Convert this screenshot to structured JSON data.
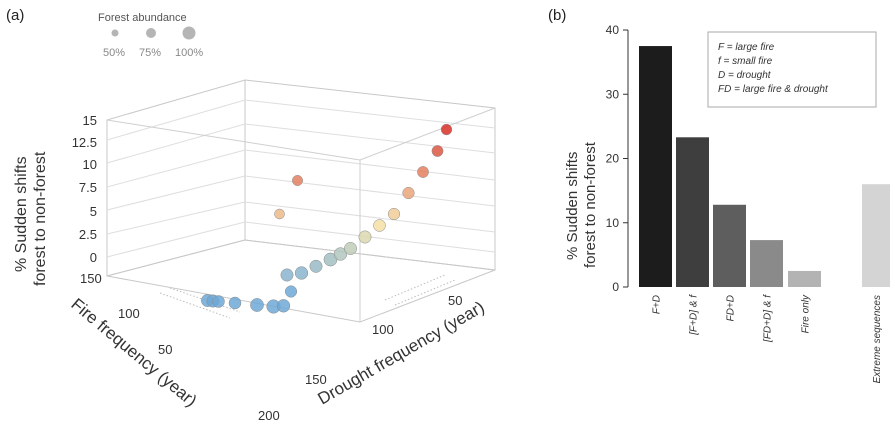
{
  "panel_a": {
    "label": "(a)",
    "legend": {
      "title": "Forest abundance",
      "items": [
        "50%",
        "75%",
        "100%"
      ]
    },
    "ylabel_line1": "% Sudden shifts",
    "ylabel_line2": "forest to non-forest",
    "fire_axis_title": "Fire frequency (year)",
    "drought_axis_title": "Drought frequency (year)",
    "z_ticks": [
      "15",
      "12.5",
      "10",
      "7.5",
      "5",
      "2.5",
      "0"
    ],
    "fire_ticks": [
      "150",
      "100",
      "50"
    ],
    "drought_ticks": [
      "200",
      "150",
      "100",
      "50"
    ]
  },
  "panel_b": {
    "label": "(b)",
    "ylabel_line1": "% Sudden shifts",
    "ylabel_line2": "forest to non-forest",
    "legend": [
      "F = large fire",
      "f = small fire",
      "D = drought",
      "FD = large fire & drought"
    ],
    "y_ticks": [
      "40",
      "30",
      "20",
      "10",
      "0"
    ]
  },
  "chart_data": [
    {
      "type": "scatter",
      "subtype": "3d-bubble",
      "title": "",
      "xlabel": "Fire frequency (year)",
      "ylabel": "Drought frequency (year)",
      "zlabel": "% Sudden shifts forest to non-forest",
      "zlim": [
        0,
        15
      ],
      "size_legend": {
        "title": "Forest abundance",
        "values": [
          "50%",
          "75%",
          "100%"
        ]
      },
      "color_scale": [
        "#6fa8d6",
        "#f4e3a6",
        "#d73027"
      ],
      "points": [
        {
          "fire": 150,
          "drought": 200,
          "z": 0,
          "abundance": 0.8
        },
        {
          "fire": 140,
          "drought": 200,
          "z": 0,
          "abundance": 0.8
        },
        {
          "fire": 130,
          "drought": 200,
          "z": 0,
          "abundance": 0.75
        },
        {
          "fire": 100,
          "drought": 200,
          "z": 0,
          "abundance": 0.75
        },
        {
          "fire": 60,
          "drought": 200,
          "z": 0,
          "abundance": 0.9
        },
        {
          "fire": 30,
          "drought": 200,
          "z": 0,
          "abundance": 0.95
        },
        {
          "fire": 20,
          "drought": 195,
          "z": 0,
          "abundance": 0.85
        },
        {
          "fire": 80,
          "drought": 150,
          "z": 0,
          "abundance": 0.7
        },
        {
          "fire": 120,
          "drought": 130,
          "z": 1,
          "abundance": 0.8
        },
        {
          "fire": 110,
          "drought": 120,
          "z": 1,
          "abundance": 0.85
        },
        {
          "fire": 100,
          "drought": 110,
          "z": 1.5,
          "abundance": 0.8
        },
        {
          "fire": 90,
          "drought": 100,
          "z": 2,
          "abundance": 0.9
        },
        {
          "fire": 80,
          "drought": 95,
          "z": 2.5,
          "abundance": 0.85
        },
        {
          "fire": 70,
          "drought": 90,
          "z": 3,
          "abundance": 0.8
        },
        {
          "fire": 60,
          "drought": 80,
          "z": 4,
          "abundance": 0.8
        },
        {
          "fire": 50,
          "drought": 70,
          "z": 5,
          "abundance": 0.75
        },
        {
          "fire": 40,
          "drought": 60,
          "z": 6,
          "abundance": 0.7
        },
        {
          "fire": 30,
          "drought": 50,
          "z": 8,
          "abundance": 0.7
        },
        {
          "fire": 20,
          "drought": 40,
          "z": 10,
          "abundance": 0.65
        },
        {
          "fire": 10,
          "drought": 30,
          "z": 12,
          "abundance": 0.65
        },
        {
          "fire": 10,
          "drought": 20,
          "z": 14,
          "abundance": 0.6
        },
        {
          "fire": 150,
          "drought": 100,
          "z": 10,
          "abundance": 0.55
        },
        {
          "fire": 150,
          "drought": 120,
          "z": 7,
          "abundance": 0.5
        }
      ]
    },
    {
      "type": "bar",
      "title": "",
      "xlabel": "",
      "ylabel": "% Sudden shifts forest to non-forest",
      "ylim": [
        0,
        40
      ],
      "categories": [
        "F+D",
        "[F+D] & f",
        "FD+D",
        "[FD+D] & f",
        "Fire only",
        "Extreme sequences"
      ],
      "values": [
        37.5,
        23.3,
        12.8,
        7.3,
        2.5,
        16.0
      ],
      "colors": [
        "#1c1c1c",
        "#3e3e3e",
        "#5e5e5e",
        "#8a8a8a",
        "#b3b3b3",
        "#d4d4d4"
      ],
      "legend": [
        "F = large fire",
        "f = small fire",
        "D = drought",
        "FD = large fire & drought"
      ]
    }
  ]
}
